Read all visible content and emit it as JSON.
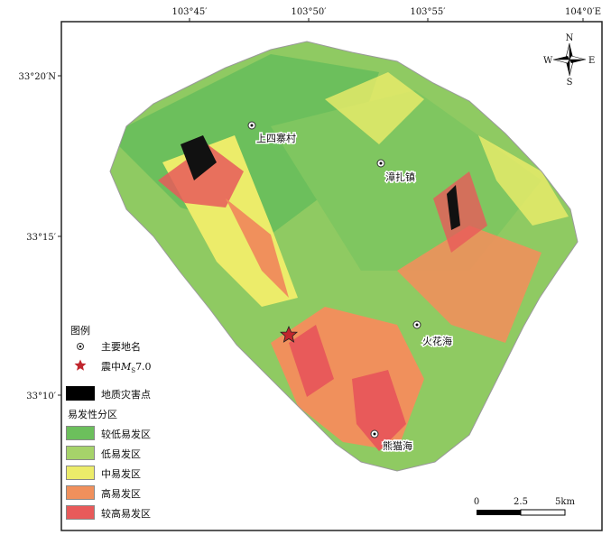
{
  "axes": {
    "top": [
      "103°45′",
      "103°50′",
      "103°55′",
      "104°0′E"
    ],
    "left": [
      "33°20′N",
      "33°15′",
      "33°10′"
    ]
  },
  "compass": {
    "n": "N",
    "s": "S",
    "e": "E",
    "w": "W"
  },
  "places": [
    {
      "name": "上四寨村"
    },
    {
      "name": "漳扎镇"
    },
    {
      "name": "火花海"
    },
    {
      "name": "熊猫海"
    }
  ],
  "legend": {
    "title": "图例",
    "place_label": "主要地名",
    "epicenter_label": "震中",
    "epicenter_mag_symbol": "M",
    "epicenter_mag_sub": "S",
    "epicenter_mag_value": "7.0",
    "hazard_label": "地质灾害点",
    "zoning_title": "易发性分区",
    "classes": [
      {
        "label": "较低易发区",
        "color": "#6cbf5c"
      },
      {
        "label": "低易发区",
        "color": "#a6d36a"
      },
      {
        "label": "中易发区",
        "color": "#ecec6a"
      },
      {
        "label": "高易发区",
        "color": "#f0905c"
      },
      {
        "label": "较高易发区",
        "color": "#e85a5a"
      }
    ]
  },
  "scale": {
    "labels": [
      "0",
      "2.5",
      "5km"
    ]
  }
}
